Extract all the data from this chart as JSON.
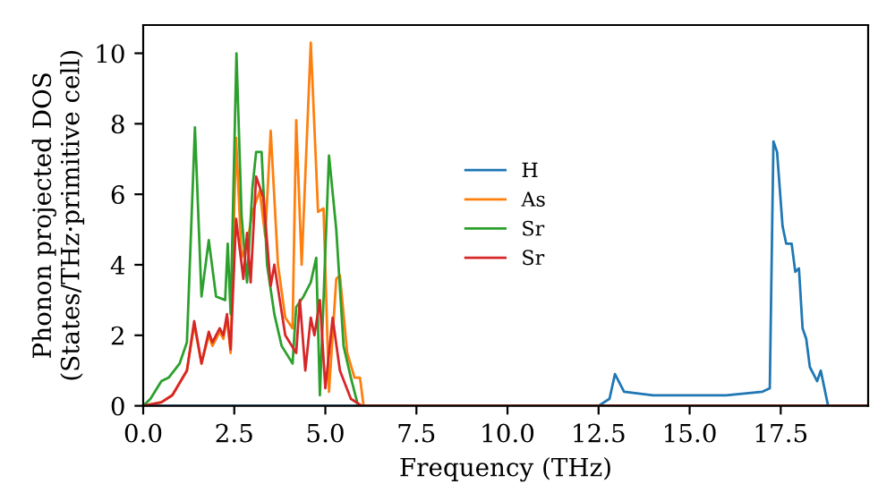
{
  "chart_data": {
    "type": "line",
    "xlabel": "Frequency (THz)",
    "ylabel": "Phonon projected DOS\n(States/THz·primitive cell)",
    "xlim": [
      0,
      19.9
    ],
    "ylim": [
      0,
      10.8
    ],
    "xticks": [
      {
        "value": 0,
        "label": "0.0"
      },
      2.5,
      {
        "value": 5,
        "label": "5.0"
      },
      7.5,
      {
        "value": 10,
        "label": "10.0"
      },
      12.5,
      {
        "value": 15,
        "label": "15.0"
      },
      17.5
    ],
    "yticks": [
      0,
      2,
      4,
      6,
      8,
      10
    ],
    "legend": "center",
    "grid": false,
    "marker": "none",
    "line_style": "solid",
    "series": [
      {
        "name": "H",
        "color": "#1f77b4",
        "x": [
          0,
          12.5,
          12.8,
          12.95,
          13.2,
          14.0,
          16.0,
          17.0,
          17.2,
          17.3,
          17.4,
          17.55,
          17.65,
          17.8,
          17.9,
          18.0,
          18.1,
          18.2,
          18.3,
          18.5,
          18.6,
          18.8,
          19.85
        ],
        "values": [
          0,
          0,
          0.2,
          0.9,
          0.4,
          0.3,
          0.3,
          0.4,
          0.5,
          7.5,
          7.2,
          5.1,
          4.6,
          4.6,
          3.8,
          3.9,
          2.2,
          1.9,
          1.1,
          0.7,
          1.0,
          0,
          0
        ]
      },
      {
        "name": "As",
        "color": "#ff7f0e",
        "x": [
          0,
          0.5,
          0.8,
          1.2,
          1.4,
          1.6,
          1.8,
          1.9,
          2.1,
          2.2,
          2.3,
          2.4,
          2.55,
          2.7,
          2.85,
          3.0,
          3.2,
          3.35,
          3.5,
          3.7,
          3.9,
          4.1,
          4.2,
          4.35,
          4.6,
          4.8,
          4.95,
          5.1,
          5.3,
          5.4,
          5.6,
          5.8,
          5.95,
          6.05,
          19.85
        ],
        "values": [
          0,
          0.1,
          0.3,
          1.0,
          2.3,
          1.2,
          2.0,
          1.7,
          2.1,
          1.9,
          2.5,
          1.5,
          7.6,
          4.2,
          4.6,
          5.5,
          6.1,
          4.8,
          7.8,
          4.0,
          2.5,
          2.2,
          8.1,
          4.0,
          10.3,
          5.5,
          5.6,
          0.4,
          3.6,
          3.7,
          1.5,
          0.8,
          0.8,
          0,
          0
        ]
      },
      {
        "name": "Sr",
        "color": "#2ca02c",
        "x": [
          0,
          0.2,
          0.5,
          0.7,
          1.0,
          1.2,
          1.42,
          1.6,
          1.8,
          2.0,
          2.25,
          2.32,
          2.4,
          2.56,
          2.7,
          2.85,
          3.0,
          3.1,
          3.25,
          3.4,
          3.6,
          3.8,
          4.1,
          4.2,
          4.4,
          4.6,
          4.75,
          4.85,
          5.1,
          5.3,
          5.5,
          5.7,
          5.9,
          19.85
        ],
        "values": [
          0,
          0.2,
          0.7,
          0.8,
          1.2,
          1.8,
          7.9,
          3.1,
          4.7,
          3.1,
          3.0,
          4.6,
          2.6,
          10.0,
          5.4,
          3.5,
          6.2,
          7.2,
          7.2,
          4.0,
          2.6,
          1.7,
          1.2,
          2.8,
          3.1,
          3.5,
          4.2,
          0.3,
          7.1,
          5.0,
          1.7,
          0.8,
          0,
          0
        ]
      },
      {
        "name": "Sr",
        "color": "#d62728",
        "x": [
          0,
          0.5,
          0.8,
          1.2,
          1.4,
          1.6,
          1.8,
          1.9,
          2.1,
          2.2,
          2.3,
          2.4,
          2.55,
          2.75,
          2.85,
          2.95,
          3.1,
          3.3,
          3.5,
          3.6,
          3.9,
          4.2,
          4.3,
          4.45,
          4.6,
          4.7,
          4.85,
          5.0,
          5.2,
          5.4,
          5.7,
          6.0,
          19.85
        ],
        "values": [
          0,
          0.1,
          0.3,
          1.0,
          2.4,
          1.2,
          2.1,
          1.8,
          2.2,
          2.0,
          2.6,
          1.6,
          5.3,
          3.6,
          4.9,
          3.5,
          6.5,
          5.9,
          3.4,
          4.0,
          2.0,
          1.5,
          3.0,
          1.0,
          2.5,
          2.0,
          3.0,
          0.5,
          2.5,
          1.0,
          0.2,
          0,
          0
        ]
      }
    ]
  }
}
